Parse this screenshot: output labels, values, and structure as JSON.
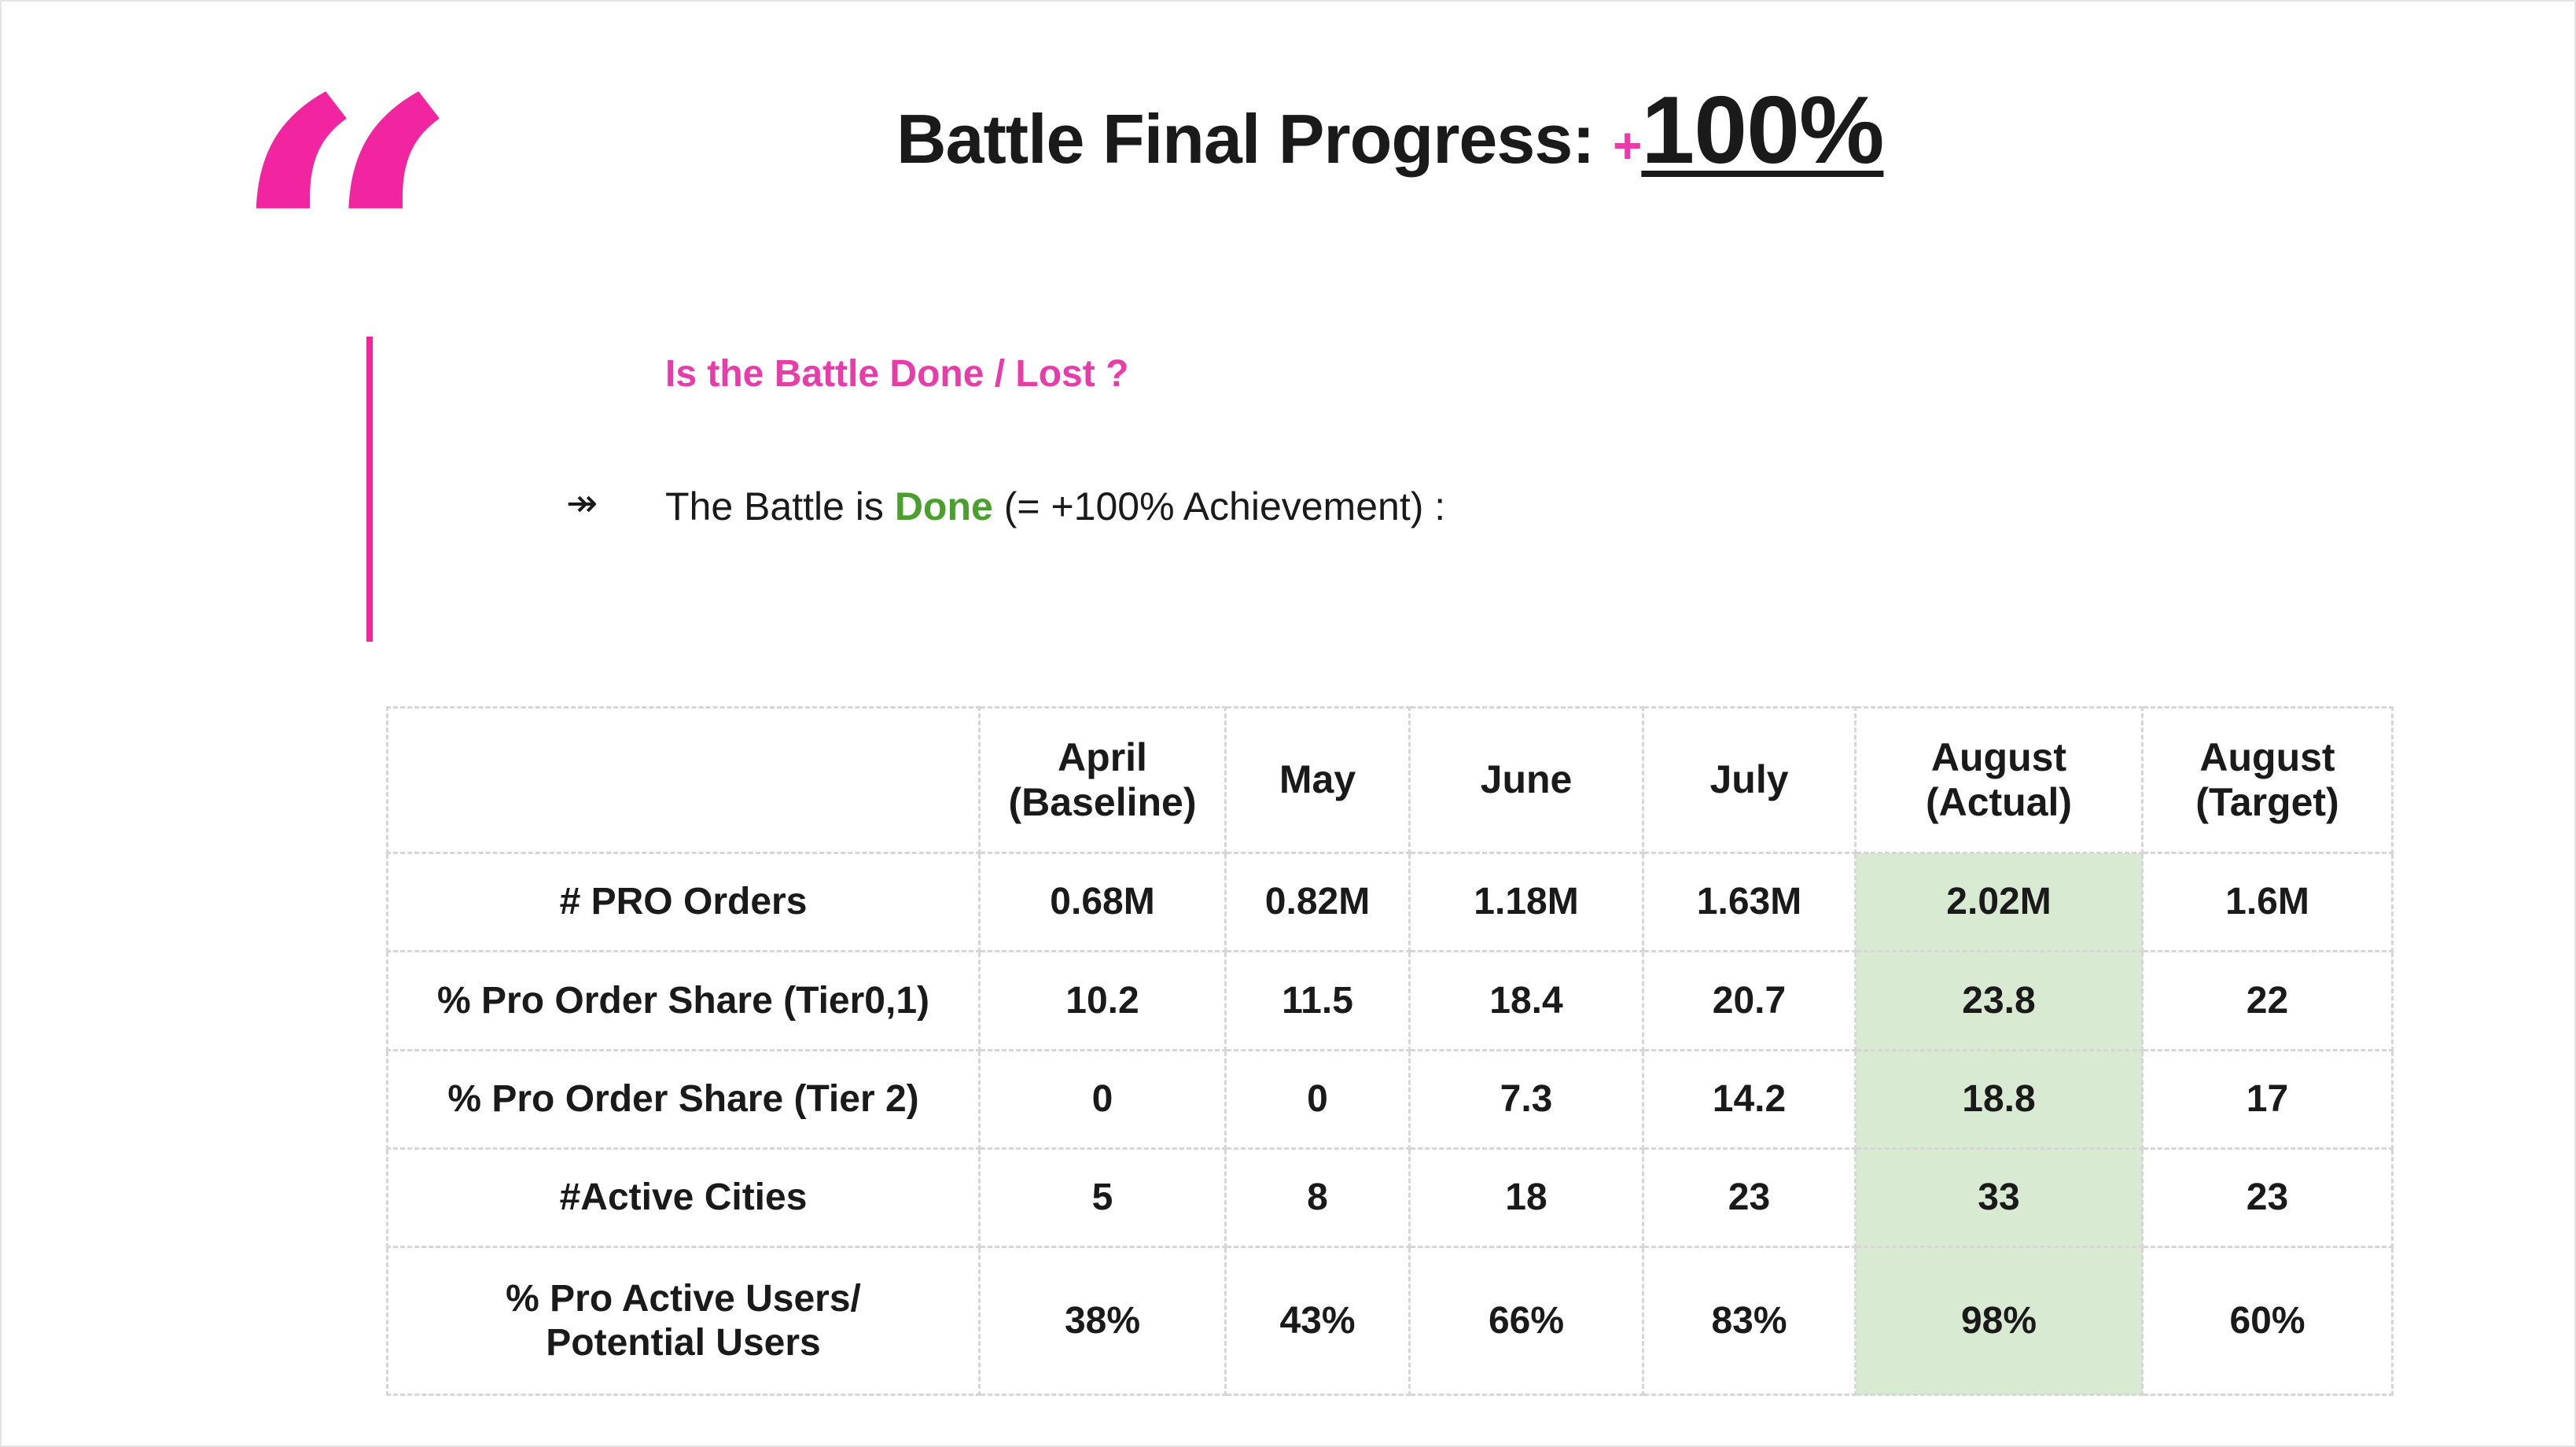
{
  "title": {
    "text": "Battle Final Progress:",
    "plus": "+",
    "value": "100%"
  },
  "quote_icon": "left-double-quote-icon",
  "question": "Is the Battle Done / Lost ?",
  "statement": {
    "arrow": "↠",
    "prefix": "The Battle is",
    "status": "Done",
    "suffix": "(= +100% Achievement) :"
  },
  "colors": {
    "accent": "#e83cab",
    "done": "#4aa02c",
    "highlight": "#d9ead3"
  },
  "table": {
    "headers": [
      "",
      "April\n(Baseline)",
      "May",
      "June",
      "July",
      "August\n(Actual)",
      "August\n(Target)"
    ],
    "rows": [
      {
        "label": "# PRO Orders",
        "values": [
          "0.68M",
          "0.82M",
          "1.18M",
          "1.63M",
          "2.02M",
          "1.6M"
        ]
      },
      {
        "label": "% Pro Order Share (Tier0,1)",
        "values": [
          "10.2",
          "11.5",
          "18.4",
          "20.7",
          "23.8",
          "22"
        ]
      },
      {
        "label": "% Pro Order Share (Tier 2)",
        "values": [
          "0",
          "0",
          "7.3",
          "14.2",
          "18.8",
          "17"
        ]
      },
      {
        "label": "#Active Cities",
        "values": [
          "5",
          "8",
          "18",
          "23",
          "33",
          "23"
        ]
      },
      {
        "label": "% Pro Active Users/\nPotential Users",
        "values": [
          "38%",
          "43%",
          "66%",
          "83%",
          "98%",
          "60%"
        ]
      }
    ]
  }
}
